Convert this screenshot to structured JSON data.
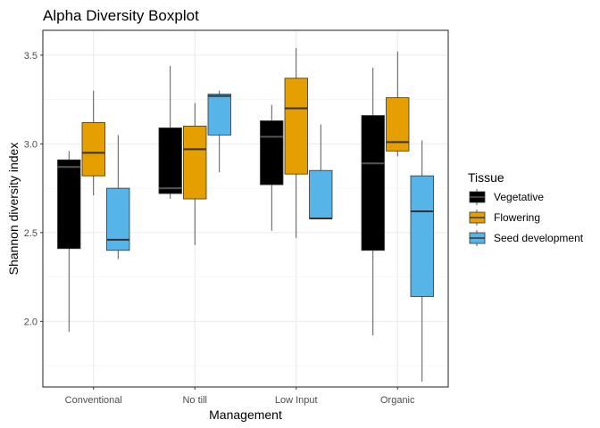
{
  "chart_data": {
    "type": "boxplot",
    "title": "Alpha Diversity Boxplot",
    "xlabel": "Management",
    "ylabel": "Shannon diversity index",
    "categories": [
      "Conventional",
      "No till",
      "Low Input",
      "Organic"
    ],
    "ylim": [
      1.63,
      3.64
    ],
    "yticks": [
      2.0,
      2.5,
      3.0,
      3.5
    ],
    "ytick_labels": [
      "2.0",
      "2.5",
      "3.0",
      "3.5"
    ],
    "grid": true,
    "legend": {
      "title": "Tissue",
      "placement": "right"
    },
    "series": [
      {
        "name": "Vegetative",
        "color": "#000000",
        "median_color": "#555555",
        "boxes": [
          {
            "min": 1.94,
            "q1": 2.41,
            "median": 2.87,
            "q3": 2.91,
            "max": 2.96
          },
          {
            "min": 2.69,
            "q1": 2.72,
            "median": 2.75,
            "q3": 3.09,
            "max": 3.44
          },
          {
            "min": 2.51,
            "q1": 2.77,
            "median": 3.04,
            "q3": 3.13,
            "max": 3.22
          },
          {
            "min": 1.92,
            "q1": 2.4,
            "median": 2.89,
            "q3": 3.16,
            "max": 3.43
          }
        ]
      },
      {
        "name": "Flowering",
        "color": "#E69F00",
        "median_color": "#333333",
        "boxes": [
          {
            "min": 2.71,
            "q1": 2.82,
            "median": 2.95,
            "q3": 3.12,
            "max": 3.3
          },
          {
            "min": 2.43,
            "q1": 2.69,
            "median": 2.97,
            "q3": 3.1,
            "max": 3.23
          },
          {
            "min": 2.47,
            "q1": 2.83,
            "median": 3.2,
            "q3": 3.37,
            "max": 3.54
          },
          {
            "min": 2.93,
            "q1": 2.96,
            "median": 3.01,
            "q3": 3.26,
            "max": 3.52
          }
        ]
      },
      {
        "name": "Seed development",
        "color": "#56B4E9",
        "median_color": "#333333",
        "boxes": [
          {
            "min": 2.35,
            "q1": 2.4,
            "median": 2.46,
            "q3": 2.75,
            "max": 3.05
          },
          {
            "min": 2.84,
            "q1": 3.05,
            "median": 3.27,
            "q3": 3.28,
            "max": 3.3
          },
          {
            "min": 2.58,
            "q1": 2.58,
            "median": 2.58,
            "q3": 2.85,
            "max": 3.11
          },
          {
            "min": 1.66,
            "q1": 2.14,
            "median": 2.62,
            "q3": 2.82,
            "max": 3.02
          }
        ]
      }
    ]
  }
}
